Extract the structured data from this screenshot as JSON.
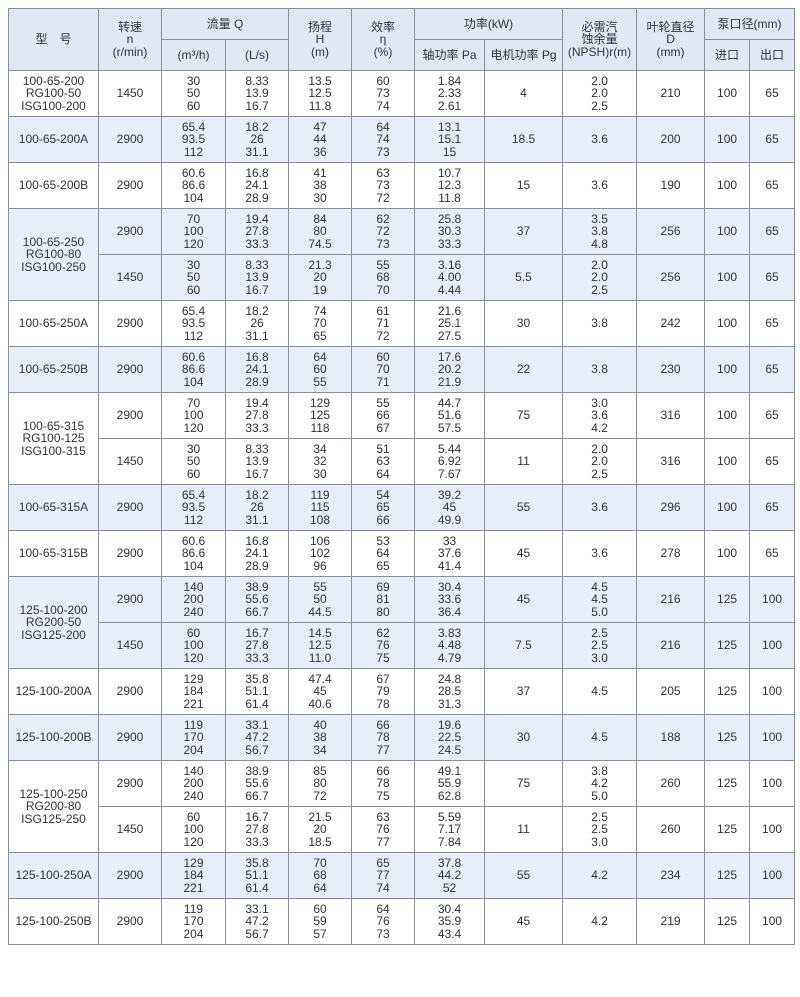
{
  "header": {
    "model": "型　号",
    "speed": [
      "转速",
      "n",
      "(r/min)"
    ],
    "flow": "流量 Q",
    "flow_m3h": "(m³/h)",
    "flow_ls": "(L/s)",
    "head": [
      "扬程",
      "H",
      "(m)"
    ],
    "eff": [
      "效率",
      "η",
      "(%)"
    ],
    "power": "功率(kW)",
    "shaft": "轴功率 Pa",
    "motor": "电机功率 Pg",
    "npsh": [
      "必需汽",
      "蚀余量",
      "(NPSH)r(m)"
    ],
    "impeller": [
      "叶轮直径",
      "D",
      "(mm)"
    ],
    "port": "泵口径(mm)",
    "inlet": "进口",
    "outlet": "出口"
  },
  "colors": {
    "header_bg": "#dfe9f5",
    "stripe_bg": "#e6eef9",
    "border": "#8a8f96"
  },
  "groups": [
    {
      "model": [
        "100-65-200",
        "RG100-50",
        "ISG100-200"
      ],
      "rows": [
        {
          "speed": "1450",
          "q1": [
            "30",
            "50",
            "60"
          ],
          "q2": [
            "8.33",
            "13.9",
            "16.7"
          ],
          "h": [
            "13.5",
            "12.5",
            "11.8"
          ],
          "e": [
            "60",
            "73",
            "74"
          ],
          "pa": [
            "1.84",
            "2.33",
            "2.61"
          ],
          "pg": "4",
          "npsh": [
            "2.0",
            "2.0",
            "2.5"
          ],
          "d": "210",
          "in": "100",
          "out": "65"
        }
      ]
    },
    {
      "model": [
        "100-65-200A"
      ],
      "rows": [
        {
          "speed": "2900",
          "q1": [
            "65.4",
            "93.5",
            "112"
          ],
          "q2": [
            "18.2",
            "26",
            "31.1"
          ],
          "h": [
            "47",
            "44",
            "36"
          ],
          "e": [
            "64",
            "74",
            "73"
          ],
          "pa": [
            "13.1",
            "15.1",
            "15"
          ],
          "pg": "18.5",
          "npsh": [
            "3.6"
          ],
          "d": "200",
          "in": "100",
          "out": "65"
        }
      ]
    },
    {
      "model": [
        "100-65-200B"
      ],
      "rows": [
        {
          "speed": "2900",
          "q1": [
            "60.6",
            "86.6",
            "104"
          ],
          "q2": [
            "16.8",
            "24.1",
            "28.9"
          ],
          "h": [
            "41",
            "38",
            "30"
          ],
          "e": [
            "63",
            "73",
            "72"
          ],
          "pa": [
            "10.7",
            "12.3",
            "11.8"
          ],
          "pg": "15",
          "npsh": [
            "3.6"
          ],
          "d": "190",
          "in": "100",
          "out": "65"
        }
      ]
    },
    {
      "model": [
        "100-65-250",
        "RG100-80",
        "ISG100-250"
      ],
      "rows": [
        {
          "speed": "2900",
          "q1": [
            "70",
            "100",
            "120"
          ],
          "q2": [
            "19.4",
            "27.8",
            "33.3"
          ],
          "h": [
            "84",
            "80",
            "74.5"
          ],
          "e": [
            "62",
            "72",
            "73"
          ],
          "pa": [
            "25.8",
            "30.3",
            "33.3"
          ],
          "pg": "37",
          "npsh": [
            "3.5",
            "3.8",
            "4.8"
          ],
          "d": "256",
          "in": "100",
          "out": "65"
        },
        {
          "speed": "1450",
          "q1": [
            "30",
            "50",
            "60"
          ],
          "q2": [
            "8.33",
            "13.9",
            "16.7"
          ],
          "h": [
            "21.3",
            "20",
            "19"
          ],
          "e": [
            "55",
            "68",
            "70"
          ],
          "pa": [
            "3.16",
            "4.00",
            "4.44"
          ],
          "pg": "5.5",
          "npsh": [
            "2.0",
            "2.0",
            "2.5"
          ],
          "d": "256",
          "in": "100",
          "out": "65"
        }
      ]
    },
    {
      "model": [
        "100-65-250A"
      ],
      "rows": [
        {
          "speed": "2900",
          "q1": [
            "65.4",
            "93.5",
            "112"
          ],
          "q2": [
            "18.2",
            "26",
            "31.1"
          ],
          "h": [
            "74",
            "70",
            "65"
          ],
          "e": [
            "61",
            "71",
            "72"
          ],
          "pa": [
            "21.6",
            "25.1",
            "27.5"
          ],
          "pg": "30",
          "npsh": [
            "3.8"
          ],
          "d": "242",
          "in": "100",
          "out": "65"
        }
      ]
    },
    {
      "model": [
        "100-65-250B"
      ],
      "rows": [
        {
          "speed": "2900",
          "q1": [
            "60.6",
            "86.6",
            "104"
          ],
          "q2": [
            "16.8",
            "24.1",
            "28.9"
          ],
          "h": [
            "64",
            "60",
            "55"
          ],
          "e": [
            "60",
            "70",
            "71"
          ],
          "pa": [
            "17.6",
            "20.2",
            "21.9"
          ],
          "pg": "22",
          "npsh": [
            "3.8"
          ],
          "d": "230",
          "in": "100",
          "out": "65"
        }
      ]
    },
    {
      "model": [
        "100-65-315",
        "RG100-125",
        "ISG100-315"
      ],
      "rows": [
        {
          "speed": "2900",
          "q1": [
            "70",
            "100",
            "120"
          ],
          "q2": [
            "19.4",
            "27.8",
            "33.3"
          ],
          "h": [
            "129",
            "125",
            "118"
          ],
          "e": [
            "55",
            "66",
            "67"
          ],
          "pa": [
            "44.7",
            "51.6",
            "57.5"
          ],
          "pg": "75",
          "npsh": [
            "3.0",
            "3.6",
            "4.2"
          ],
          "d": "316",
          "in": "100",
          "out": "65"
        },
        {
          "speed": "1450",
          "q1": [
            "30",
            "50",
            "60"
          ],
          "q2": [
            "8.33",
            "13.9",
            "16.7"
          ],
          "h": [
            "34",
            "32",
            "30"
          ],
          "e": [
            "51",
            "63",
            "64"
          ],
          "pa": [
            "5.44",
            "6.92",
            "7.67"
          ],
          "pg": "11",
          "npsh": [
            "2.0",
            "2.0",
            "2.5"
          ],
          "d": "316",
          "in": "100",
          "out": "65"
        }
      ]
    },
    {
      "model": [
        "100-65-315A"
      ],
      "rows": [
        {
          "speed": "2900",
          "q1": [
            "65.4",
            "93.5",
            "112"
          ],
          "q2": [
            "18.2",
            "26",
            "31.1"
          ],
          "h": [
            "119",
            "115",
            "108"
          ],
          "e": [
            "54",
            "65",
            "66"
          ],
          "pa": [
            "39.2",
            "45",
            "49.9"
          ],
          "pg": "55",
          "npsh": [
            "3.6"
          ],
          "d": "296",
          "in": "100",
          "out": "65"
        }
      ]
    },
    {
      "model": [
        "100-65-315B"
      ],
      "rows": [
        {
          "speed": "2900",
          "q1": [
            "60.6",
            "86.6",
            "104"
          ],
          "q2": [
            "16.8",
            "24.1",
            "28.9"
          ],
          "h": [
            "106",
            "102",
            "96"
          ],
          "e": [
            "53",
            "64",
            "65"
          ],
          "pa": [
            "33",
            "37.6",
            "41.4"
          ],
          "pg": "45",
          "npsh": [
            "3.6"
          ],
          "d": "278",
          "in": "100",
          "out": "65"
        }
      ]
    },
    {
      "model": [
        "125-100-200",
        "RG200-50",
        "ISG125-200"
      ],
      "rows": [
        {
          "speed": "2900",
          "q1": [
            "140",
            "200",
            "240"
          ],
          "q2": [
            "38.9",
            "55.6",
            "66.7"
          ],
          "h": [
            "55",
            "50",
            "44.5"
          ],
          "e": [
            "69",
            "81",
            "80"
          ],
          "pa": [
            "30.4",
            "33.6",
            "36.4"
          ],
          "pg": "45",
          "npsh": [
            "4.5",
            "4.5",
            "5.0"
          ],
          "d": "216",
          "in": "125",
          "out": "100"
        },
        {
          "speed": "1450",
          "q1": [
            "60",
            "100",
            "120"
          ],
          "q2": [
            "16.7",
            "27.8",
            "33.3"
          ],
          "h": [
            "14.5",
            "12.5",
            "11.0"
          ],
          "e": [
            "62",
            "76",
            "75"
          ],
          "pa": [
            "3.83",
            "4.48",
            "4.79"
          ],
          "pg": "7.5",
          "npsh": [
            "2.5",
            "2.5",
            "3.0"
          ],
          "d": "216",
          "in": "125",
          "out": "100"
        }
      ]
    },
    {
      "model": [
        "125-100-200A"
      ],
      "rows": [
        {
          "speed": "2900",
          "q1": [
            "129",
            "184",
            "221"
          ],
          "q2": [
            "35.8",
            "51.1",
            "61.4"
          ],
          "h": [
            "47.4",
            "45",
            "40.6"
          ],
          "e": [
            "67",
            "79",
            "78"
          ],
          "pa": [
            "24.8",
            "28.5",
            "31.3"
          ],
          "pg": "37",
          "npsh": [
            "4.5"
          ],
          "d": "205",
          "in": "125",
          "out": "100"
        }
      ]
    },
    {
      "model": [
        "125-100-200B"
      ],
      "rows": [
        {
          "speed": "2900",
          "q1": [
            "119",
            "170",
            "204"
          ],
          "q2": [
            "33.1",
            "47.2",
            "56.7"
          ],
          "h": [
            "40",
            "38",
            "34"
          ],
          "e": [
            "66",
            "78",
            "77"
          ],
          "pa": [
            "19.6",
            "22.5",
            "24.5"
          ],
          "pg": "30",
          "npsh": [
            "4.5"
          ],
          "d": "188",
          "in": "125",
          "out": "100"
        }
      ]
    },
    {
      "model": [
        "125-100-250",
        "RG200-80",
        "ISG125-250"
      ],
      "rows": [
        {
          "speed": "2900",
          "q1": [
            "140",
            "200",
            "240"
          ],
          "q2": [
            "38.9",
            "55.6",
            "66.7"
          ],
          "h": [
            "85",
            "80",
            "72"
          ],
          "e": [
            "66",
            "78",
            "75"
          ],
          "pa": [
            "49.1",
            "55.9",
            "62.8"
          ],
          "pg": "75",
          "npsh": [
            "3.8",
            "4.2",
            "5.0"
          ],
          "d": "260",
          "in": "125",
          "out": "100"
        },
        {
          "speed": "1450",
          "q1": [
            "60",
            "100",
            "120"
          ],
          "q2": [
            "16.7",
            "27.8",
            "33.3"
          ],
          "h": [
            "21.5",
            "20",
            "18.5"
          ],
          "e": [
            "63",
            "76",
            "77"
          ],
          "pa": [
            "5.59",
            "7.17",
            "7.84"
          ],
          "pg": "11",
          "npsh": [
            "2.5",
            "2.5",
            "3.0"
          ],
          "d": "260",
          "in": "125",
          "out": "100"
        }
      ]
    },
    {
      "model": [
        "125-100-250A"
      ],
      "rows": [
        {
          "speed": "2900",
          "q1": [
            "129",
            "184",
            "221"
          ],
          "q2": [
            "35.8",
            "51.1",
            "61.4"
          ],
          "h": [
            "70",
            "68",
            "64"
          ],
          "e": [
            "65",
            "77",
            "74"
          ],
          "pa": [
            "37.8",
            "44.2",
            "52"
          ],
          "pg": "55",
          "npsh": [
            "4.2"
          ],
          "d": "234",
          "in": "125",
          "out": "100"
        }
      ]
    },
    {
      "model": [
        "125-100-250B"
      ],
      "rows": [
        {
          "speed": "2900",
          "q1": [
            "119",
            "170",
            "204"
          ],
          "q2": [
            "33.1",
            "47.2",
            "56.7"
          ],
          "h": [
            "60",
            "59",
            "57"
          ],
          "e": [
            "64",
            "76",
            "73"
          ],
          "pa": [
            "30.4",
            "35.9",
            "43.4"
          ],
          "pg": "45",
          "npsh": [
            "4.2"
          ],
          "d": "219",
          "in": "125",
          "out": "100"
        }
      ]
    }
  ]
}
